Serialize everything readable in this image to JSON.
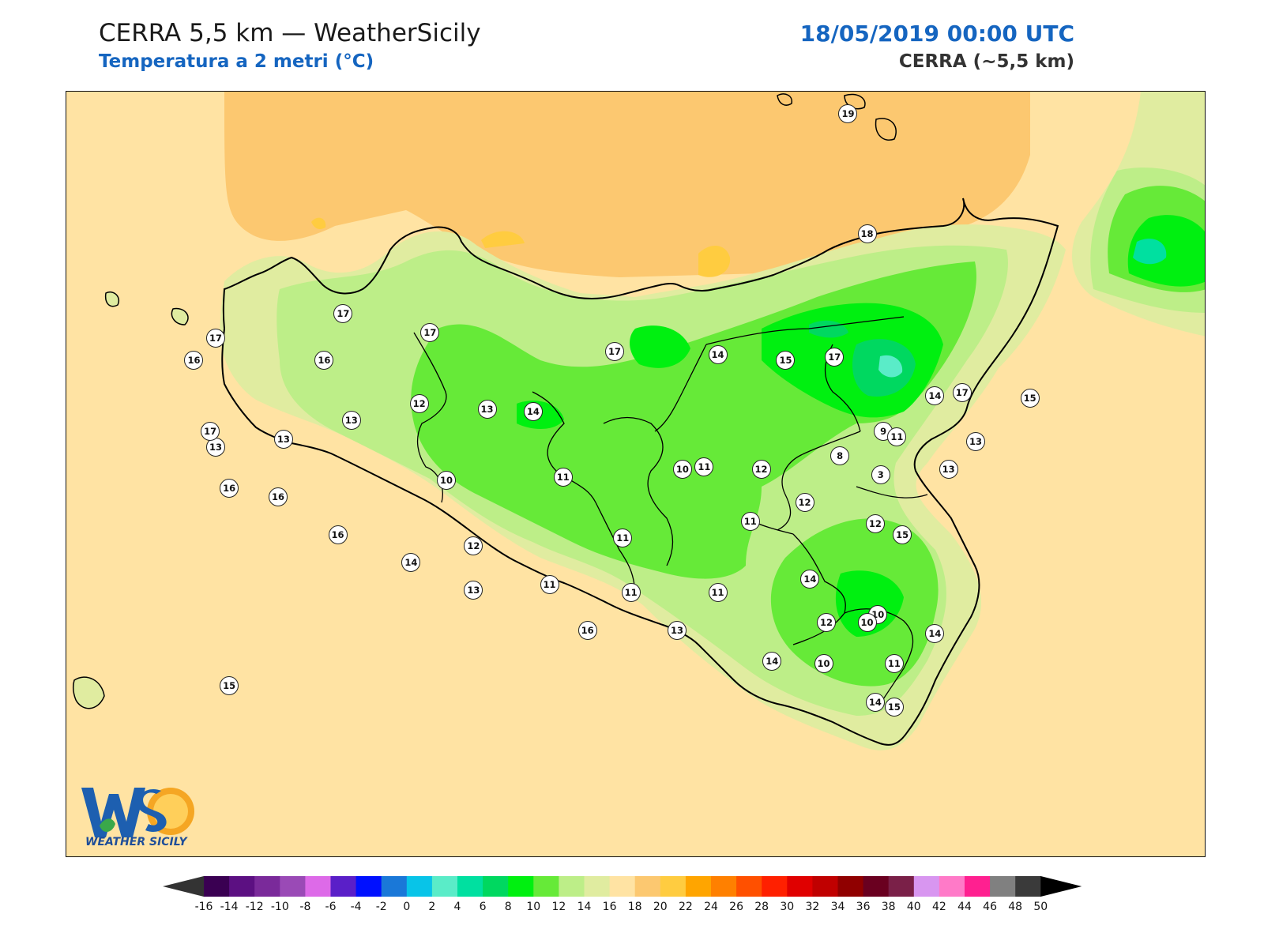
{
  "header": {
    "title": "CERRA 5,5 km — WeatherSicily",
    "subtitle": "Temperatura a 2 metri (°C)",
    "datetime": "18/05/2019 00:00 UTC",
    "model": "CERRA (~5,5 km)"
  },
  "logo": {
    "text": "WEATHER SICILY",
    "mark": "WS"
  },
  "stations": [
    {
      "v": "19",
      "lon": 14.88,
      "lat": 38.92
    },
    {
      "v": "18",
      "lon": 14.95,
      "lat": 38.48
    },
    {
      "v": "17",
      "lon": 12.55,
      "lat": 38.1
    },
    {
      "v": "17",
      "lon": 13.02,
      "lat": 38.19
    },
    {
      "v": "17",
      "lon": 13.34,
      "lat": 38.12
    },
    {
      "v": "17",
      "lon": 14.02,
      "lat": 38.05
    },
    {
      "v": "17",
      "lon": 14.83,
      "lat": 38.03
    },
    {
      "v": "17",
      "lon": 15.3,
      "lat": 37.9
    },
    {
      "v": "15",
      "lon": 15.55,
      "lat": 37.88
    },
    {
      "v": "16",
      "lon": 12.47,
      "lat": 38.02
    },
    {
      "v": "16",
      "lon": 12.95,
      "lat": 38.02
    },
    {
      "v": "14",
      "lon": 14.4,
      "lat": 38.04
    },
    {
      "v": "15",
      "lon": 14.65,
      "lat": 38.02
    },
    {
      "v": "14",
      "lon": 15.2,
      "lat": 37.89
    },
    {
      "v": "13",
      "lon": 12.55,
      "lat": 37.7
    },
    {
      "v": "13",
      "lon": 13.05,
      "lat": 37.8
    },
    {
      "v": "12",
      "lon": 13.3,
      "lat": 37.86
    },
    {
      "v": "13",
      "lon": 13.55,
      "lat": 37.84
    },
    {
      "v": "14",
      "lon": 13.72,
      "lat": 37.83
    },
    {
      "v": "9",
      "lon": 15.01,
      "lat": 37.76
    },
    {
      "v": "11",
      "lon": 15.06,
      "lat": 37.74
    },
    {
      "v": "13",
      "lon": 15.35,
      "lat": 37.72
    },
    {
      "v": "17",
      "lon": 12.53,
      "lat": 37.76
    },
    {
      "v": "13",
      "lon": 12.8,
      "lat": 37.73
    },
    {
      "v": "8",
      "lon": 14.85,
      "lat": 37.67
    },
    {
      "v": "13",
      "lon": 15.25,
      "lat": 37.62
    },
    {
      "v": "10",
      "lon": 14.27,
      "lat": 37.62
    },
    {
      "v": "11",
      "lon": 14.35,
      "lat": 37.63
    },
    {
      "v": "12",
      "lon": 14.56,
      "lat": 37.62
    },
    {
      "v": "3",
      "lon": 15.0,
      "lat": 37.6
    },
    {
      "v": "16",
      "lon": 12.6,
      "lat": 37.55
    },
    {
      "v": "16",
      "lon": 12.78,
      "lat": 37.52
    },
    {
      "v": "10",
      "lon": 13.4,
      "lat": 37.58
    },
    {
      "v": "11",
      "lon": 13.83,
      "lat": 37.59
    },
    {
      "v": "12",
      "lon": 14.72,
      "lat": 37.5
    },
    {
      "v": "11",
      "lon": 14.52,
      "lat": 37.43
    },
    {
      "v": "12",
      "lon": 14.98,
      "lat": 37.42
    },
    {
      "v": "16",
      "lon": 13.0,
      "lat": 37.38
    },
    {
      "v": "12",
      "lon": 13.5,
      "lat": 37.34
    },
    {
      "v": "11",
      "lon": 14.05,
      "lat": 37.37
    },
    {
      "v": "15",
      "lon": 15.08,
      "lat": 37.38
    },
    {
      "v": "14",
      "lon": 13.27,
      "lat": 37.28
    },
    {
      "v": "14",
      "lon": 14.74,
      "lat": 37.22
    },
    {
      "v": "13",
      "lon": 13.5,
      "lat": 37.18
    },
    {
      "v": "11",
      "lon": 13.78,
      "lat": 37.2
    },
    {
      "v": "11",
      "lon": 14.08,
      "lat": 37.17
    },
    {
      "v": "11",
      "lon": 14.4,
      "lat": 37.17
    },
    {
      "v": "10",
      "lon": 14.99,
      "lat": 37.09
    },
    {
      "v": "12",
      "lon": 14.8,
      "lat": 37.06
    },
    {
      "v": "10",
      "lon": 14.95,
      "lat": 37.06
    },
    {
      "v": "14",
      "lon": 15.2,
      "lat": 37.02
    },
    {
      "v": "16",
      "lon": 13.92,
      "lat": 37.03
    },
    {
      "v": "13",
      "lon": 14.25,
      "lat": 37.03
    },
    {
      "v": "14",
      "lon": 14.6,
      "lat": 36.92
    },
    {
      "v": "10",
      "lon": 14.79,
      "lat": 36.91
    },
    {
      "v": "11",
      "lon": 15.05,
      "lat": 36.91
    },
    {
      "v": "14",
      "lon": 14.98,
      "lat": 36.77
    },
    {
      "v": "15",
      "lon": 15.05,
      "lat": 36.75
    },
    {
      "v": "15",
      "lon": 12.6,
      "lat": 36.83
    }
  ],
  "colorbar": {
    "labels": [
      "-16",
      "-14",
      "-12",
      "-10",
      "-8",
      "-6",
      "-4",
      "-2",
      "0",
      "2",
      "4",
      "6",
      "8",
      "10",
      "12",
      "14",
      "16",
      "18",
      "20",
      "22",
      "24",
      "26",
      "28",
      "30",
      "32",
      "34",
      "36",
      "38",
      "40",
      "42",
      "44",
      "46",
      "48",
      "50"
    ],
    "colors": [
      "#3a0052",
      "#5c1082",
      "#7a2a9a",
      "#9a4ab6",
      "#dd6ae8",
      "#5a1fc8",
      "#0010ff",
      "#1a78d8",
      "#08c4e8",
      "#5aecc8",
      "#00e0a0",
      "#00d860",
      "#00f010",
      "#66ea38",
      "#bdee88",
      "#e0eca0",
      "#ffe3a3",
      "#fcc870",
      "#ffcc40",
      "#ffa500",
      "#ff8000",
      "#ff5000",
      "#ff2000",
      "#e00000",
      "#c00000",
      "#900000",
      "#6a0020",
      "#7a2048",
      "#d896f0",
      "#ff7ac8",
      "#ff2090",
      "#808080",
      "#3a3a3a"
    ],
    "left_color": "#333333",
    "right_color": "#000000"
  }
}
